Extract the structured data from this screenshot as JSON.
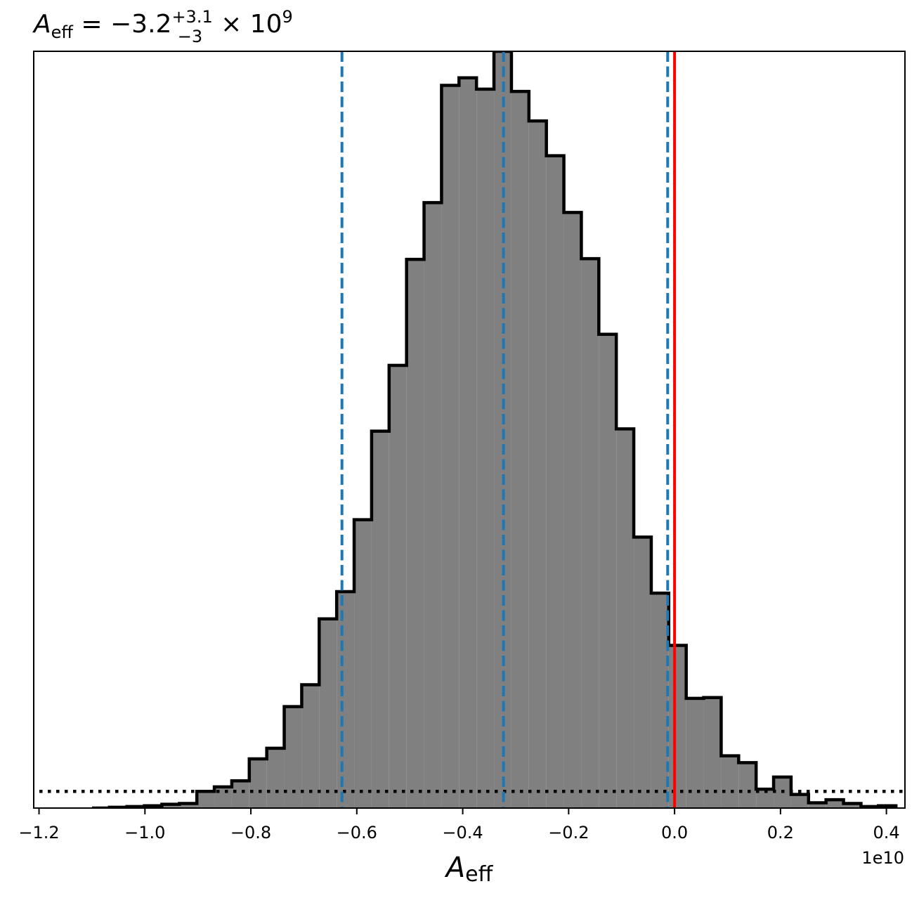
{
  "chart_data": {
    "type": "histogram",
    "title": {
      "symbol": "A",
      "subscript": "eff",
      "median": "−3.2",
      "upper": "+3.1",
      "lower": "−3",
      "multiplier": "× 10",
      "exponent": "9"
    },
    "xlabel": {
      "symbol": "A",
      "subscript": "eff"
    },
    "x_offset_label": "1e10",
    "xlim": [
      -1.21,
      0.435
    ],
    "ylim": [
      0,
      1.0
    ],
    "x_ticks": [
      {
        "value": -1.2,
        "label": "−1.2"
      },
      {
        "value": -1.0,
        "label": "−1.0"
      },
      {
        "value": -0.8,
        "label": "−0.8"
      },
      {
        "value": -0.6,
        "label": "−0.6"
      },
      {
        "value": -0.4,
        "label": "−0.4"
      },
      {
        "value": -0.2,
        "label": "−0.2"
      },
      {
        "value": 0.0,
        "label": "0.0"
      },
      {
        "value": 0.2,
        "label": "0.2"
      },
      {
        "value": 0.4,
        "label": "0.4"
      }
    ],
    "bin_edges": [
      -1.1,
      -1.067,
      -1.034,
      -1.001,
      -0.968,
      -0.935,
      -0.902,
      -0.869,
      -0.836,
      -0.803,
      -0.77,
      -0.737,
      -0.704,
      -0.671,
      -0.638,
      -0.605,
      -0.572,
      -0.539,
      -0.506,
      -0.473,
      -0.44,
      -0.407,
      -0.374,
      -0.341,
      -0.308,
      -0.275,
      -0.242,
      -0.209,
      -0.176,
      -0.143,
      -0.11,
      -0.077,
      -0.044,
      -0.011,
      0.022,
      0.055,
      0.088,
      0.121,
      0.154,
      0.187,
      0.22,
      0.253,
      0.286,
      0.319,
      0.352,
      0.385,
      0.418
    ],
    "counts": [
      0.0,
      0.001,
      0.002,
      0.003,
      0.005,
      0.006,
      0.022,
      0.028,
      0.036,
      0.065,
      0.079,
      0.134,
      0.163,
      0.25,
      0.286,
      0.381,
      0.498,
      0.585,
      0.725,
      0.8,
      0.955,
      0.965,
      0.95,
      1.0,
      0.947,
      0.908,
      0.862,
      0.787,
      0.726,
      0.626,
      0.501,
      0.358,
      0.284,
      0.215,
      0.145,
      0.146,
      0.069,
      0.06,
      0.025,
      0.041,
      0.018,
      0.007,
      0.011,
      0.006,
      0.002,
      0.003
    ],
    "prior_level": 0.022,
    "quantiles": [
      -0.628,
      -0.323,
      -0.013
    ],
    "truth": 0.0,
    "colors": {
      "fill": "#808080",
      "edge": "#000000",
      "quantile": "#1f77b4",
      "truth": "#ff0000",
      "prior": "#000000"
    }
  }
}
